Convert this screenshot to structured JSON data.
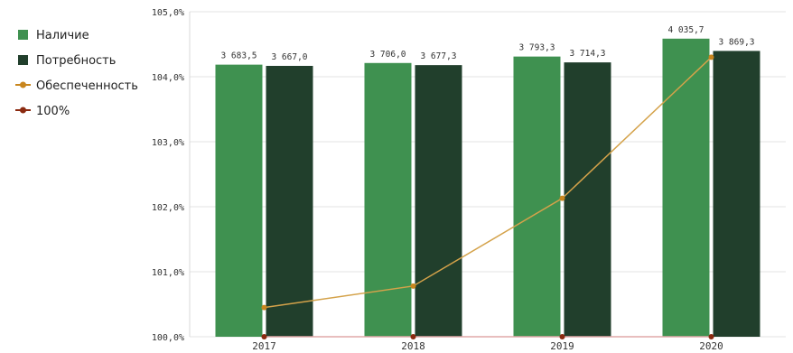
{
  "chart_data": {
    "type": "bar",
    "categories": [
      "2017",
      "2018",
      "2019",
      "2020"
    ],
    "series": [
      {
        "name": "Наличие",
        "kind": "bar",
        "color": "#3f9150",
        "values": [
          3683.5,
          3706.0,
          3793.3,
          4035.7
        ],
        "labels": [
          "3 683,5",
          "3 706,0",
          "3 793,3",
          "4 035,7"
        ]
      },
      {
        "name": "Потребность",
        "kind": "bar",
        "color": "#213f2c",
        "values": [
          3667.0,
          3677.3,
          3714.3,
          3869.3
        ],
        "labels": [
          "3 667,0",
          "3 677,3",
          "3 714,3",
          "3 869,3"
        ]
      },
      {
        "name": "Обеспеченность",
        "kind": "line",
        "color": "#d4a24a",
        "marker_color": "#c8861e",
        "values": [
          100.45,
          100.78,
          102.13,
          104.3
        ]
      },
      {
        "name": "100%",
        "kind": "line",
        "color": "#e0a8a8",
        "marker_color": "#8b2a10",
        "values": [
          100,
          100,
          100,
          100
        ]
      }
    ],
    "bar_axis": {
      "min": 0,
      "max": 4400
    },
    "y_axis": {
      "min": 100,
      "max": 105,
      "ticks": [
        {
          "value": 100,
          "label": "100,0%"
        },
        {
          "value": 101,
          "label": "101,0%"
        },
        {
          "value": 102,
          "label": "102,0%"
        },
        {
          "value": 103,
          "label": "103,0%"
        },
        {
          "value": 104,
          "label": "104,0%"
        },
        {
          "value": 105,
          "label": "105,0%"
        }
      ]
    },
    "grid": true,
    "legend_position": "left"
  }
}
